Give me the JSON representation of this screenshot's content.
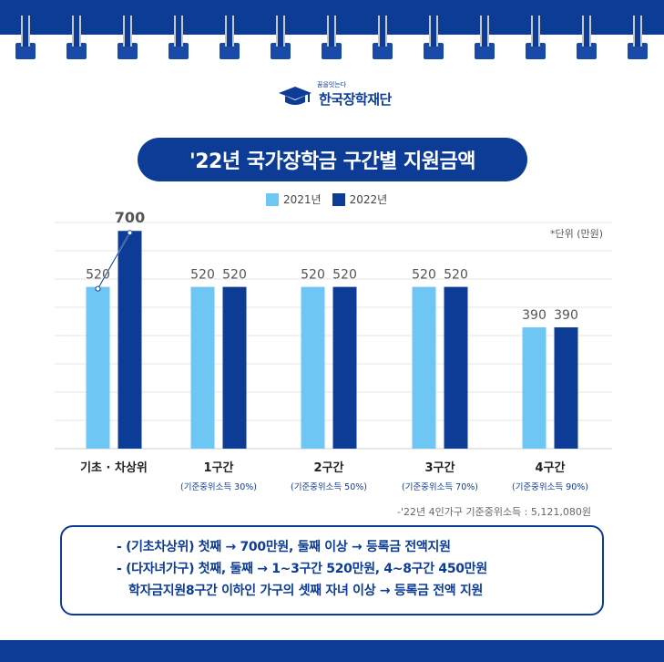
{
  "logo": {
    "sub": "꿈을잇는다",
    "name": "한국장학재단",
    "icon": "graduation-cap-icon"
  },
  "title": "'22년 국가장학금 구간별 지원금액",
  "unit": "*단위 (만원)",
  "footnote": "-'22년 4인가구 기준중위소득 : 5,121,080원",
  "colors": {
    "navy": "#0d3c96",
    "light_blue": "#6ec6f5",
    "ring_wire": "#c9c9c9"
  },
  "chart_data": {
    "type": "bar",
    "categories": [
      "기초 · 차상위",
      "1구간",
      "2구간",
      "3구간",
      "4구간"
    ],
    "category_subs": [
      "",
      "(기준중위소득 30%)",
      "(기준중위소득 50%)",
      "(기준중위소득 70%)",
      "(기준중위소득 90%)"
    ],
    "series": [
      {
        "name": "2021년",
        "color": "#6ec6f5",
        "values": [
          520,
          520,
          520,
          520,
          390
        ]
      },
      {
        "name": "2022년",
        "color": "#0d3c96",
        "values": [
          700,
          520,
          520,
          520,
          390
        ]
      }
    ],
    "data_labels": [
      [
        "520",
        "520",
        "520",
        "520",
        "390"
      ],
      [
        "700",
        "520",
        "520",
        "520",
        "390"
      ]
    ],
    "ylim": [
      0,
      730
    ],
    "grid": true,
    "legend": "top-center",
    "xlabel": "",
    "ylabel": ""
  },
  "notes": [
    "- (기초차상위) 첫째 → 700만원, 둘째 이상 → 등록금 전액지원",
    "- (다자녀가구) 첫째, 둘째 → 1~3구간 520만원, 4~8구간 450만원",
    "학자금지원8구간 이하인 가구의 셋째 자녀 이상 → 등록금 전액 지원"
  ]
}
